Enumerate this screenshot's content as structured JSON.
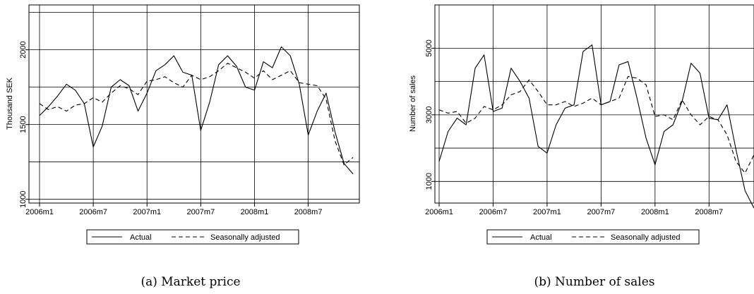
{
  "chart_data": [
    {
      "type": "line",
      "caption": "(a) Market price",
      "ylabel": "Thousand SEK",
      "xlabel": "",
      "x_ticks": [
        "2006m1",
        "2006m7",
        "2007m1",
        "2007m7",
        "2008m1",
        "2008m7"
      ],
      "y_ticks": [
        "1000",
        "1500",
        "2000"
      ],
      "y_gridlines": [
        1000,
        1250,
        1500,
        1750,
        2000,
        2250
      ],
      "xlim": [
        0,
        36
      ],
      "ylim": [
        975,
        2300
      ],
      "legend": "bottom-center",
      "grid": true,
      "series": [
        {
          "name": "Actual",
          "style": "solid",
          "values": [
            1560,
            1620,
            1690,
            1770,
            1730,
            1640,
            1350,
            1490,
            1750,
            1800,
            1760,
            1590,
            1710,
            1860,
            1900,
            1960,
            1850,
            1830,
            1460,
            1650,
            1900,
            1960,
            1890,
            1750,
            1730,
            1920,
            1880,
            2020,
            1960,
            1770,
            1430,
            1590,
            1710,
            1450,
            1240,
            1170
          ]
        },
        {
          "name": "Seasonally adjusted",
          "style": "dashed",
          "values": [
            1640,
            1600,
            1620,
            1590,
            1630,
            1640,
            1680,
            1650,
            1710,
            1760,
            1740,
            1700,
            1790,
            1800,
            1820,
            1780,
            1750,
            1830,
            1800,
            1820,
            1860,
            1910,
            1880,
            1850,
            1810,
            1860,
            1800,
            1830,
            1860,
            1780,
            1770,
            1760,
            1670,
            1390,
            1230,
            1280
          ]
        }
      ]
    },
    {
      "type": "line",
      "caption": "(b) Number of sales",
      "ylabel": "Number of sales",
      "xlabel": "",
      "x_ticks": [
        "2006m1",
        "2006m7",
        "2007m1",
        "2007m7",
        "2008m1",
        "2008m7"
      ],
      "y_ticks": [
        "1000",
        "3000",
        "5000"
      ],
      "y_gridlines": [
        1000,
        2000,
        3000,
        4000,
        5000
      ],
      "xlim": [
        0,
        36
      ],
      "ylim": [
        350,
        6300
      ],
      "legend": "bottom-center",
      "grid": true,
      "series": [
        {
          "name": "Actual",
          "style": "solid",
          "values": [
            1600,
            2500,
            2900,
            2700,
            4400,
            4800,
            3100,
            3200,
            4400,
            4000,
            3500,
            2050,
            1850,
            2700,
            3200,
            3300,
            4900,
            5100,
            3300,
            3400,
            4500,
            4600,
            3500,
            2300,
            1500,
            2500,
            2700,
            3400,
            4550,
            4250,
            2900,
            2850,
            3300,
            1950,
            720,
            200
          ]
        },
        {
          "name": "Seasonally adjusted",
          "style": "dashed",
          "values": [
            3150,
            3050,
            3100,
            2750,
            2900,
            3250,
            3150,
            3300,
            3600,
            3700,
            4050,
            3700,
            3300,
            3300,
            3400,
            3250,
            3350,
            3500,
            3300,
            3400,
            3500,
            4150,
            4100,
            3900,
            2950,
            3000,
            2850,
            3450,
            3000,
            2700,
            2950,
            2850,
            2400,
            1600,
            1250,
            1800
          ]
        }
      ]
    }
  ]
}
